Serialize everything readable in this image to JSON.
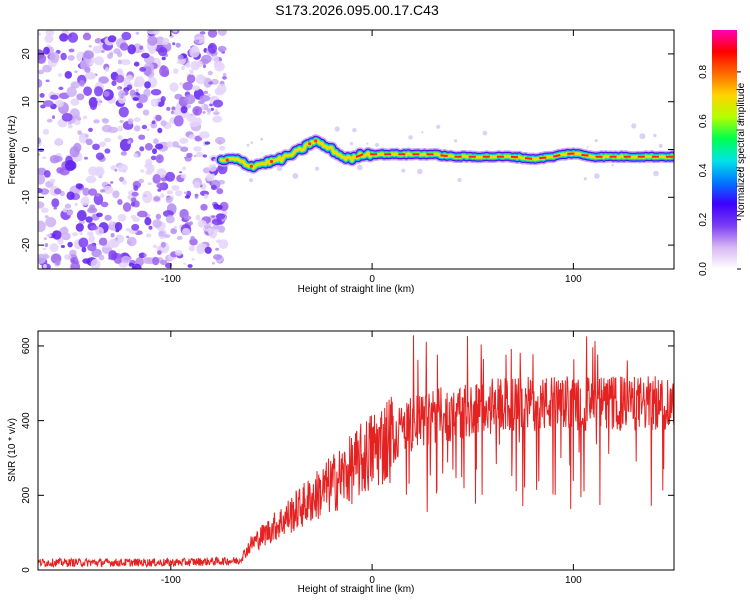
{
  "title": "S173.2026.095.00.17.C43",
  "chart_data": [
    {
      "type": "heatmap",
      "title": "",
      "xlabel": "Height of straight line (km)",
      "ylabel": "Frequency (Hz)",
      "xlim": [
        -166,
        150
      ],
      "ylim": [
        -25,
        25
      ],
      "xticks": [
        -100,
        0,
        100
      ],
      "yticks": [
        -20,
        -10,
        0,
        10,
        20
      ],
      "noise_region_x": [
        -166,
        -73
      ],
      "ridge": {
        "x": [
          -75,
          -70,
          -65,
          -60,
          -55,
          -50,
          -45,
          -40,
          -35,
          -30,
          -28,
          -25,
          -20,
          -15,
          -10,
          -5,
          0,
          10,
          20,
          30,
          40,
          50,
          60,
          70,
          80,
          90,
          95,
          100,
          110,
          120,
          130,
          140,
          150
        ],
        "y": [
          -2.5,
          -2.0,
          -2.5,
          -3.5,
          -3.0,
          -2.5,
          -2.0,
          -1.0,
          0.0,
          1.5,
          1.8,
          1.0,
          0.0,
          -1.5,
          -2.0,
          -1.0,
          -1.0,
          -1.0,
          -1.0,
          -1.0,
          -1.5,
          -1.5,
          -1.5,
          -1.5,
          -2.0,
          -1.5,
          -1.0,
          -0.8,
          -1.5,
          -1.5,
          -1.5,
          -1.5,
          -1.5
        ]
      },
      "colorbar": {
        "label": "Normalized spectral amplitude",
        "ticks": [
          0.0,
          0.2,
          0.4,
          0.6,
          0.8
        ],
        "tick_labels": [
          "0.0",
          "0.2",
          "0.4",
          "0.6",
          "0.8"
        ],
        "range": [
          0,
          0.97
        ],
        "colors": [
          "#ffffff",
          "#d8b8f5",
          "#7a3cf2",
          "#3c00ff",
          "#0078ff",
          "#00e5e5",
          "#00ff50",
          "#b4ff00",
          "#ffd400",
          "#ff6a00",
          "#ff0000",
          "#ff00b4"
        ]
      }
    },
    {
      "type": "line",
      "title": "",
      "xlabel": "Height of straight line (km)",
      "ylabel": "SNR (10 * v/v)",
      "xlim": [
        -166,
        150
      ],
      "ylim": [
        0,
        640
      ],
      "xticks": [
        -100,
        0,
        100
      ],
      "yticks": [
        0,
        200,
        400,
        600
      ],
      "color": "#e52222",
      "envelope": {
        "x": [
          -166,
          -100,
          -66,
          -60,
          -50,
          -40,
          -30,
          -20,
          -10,
          0,
          10,
          20,
          30,
          40,
          60,
          80,
          100,
          120,
          140,
          150
        ],
        "y": [
          20,
          20,
          25,
          70,
          110,
          150,
          190,
          230,
          270,
          320,
          360,
          390,
          410,
          420,
          440,
          445,
          445,
          445,
          445,
          450
        ]
      }
    }
  ]
}
